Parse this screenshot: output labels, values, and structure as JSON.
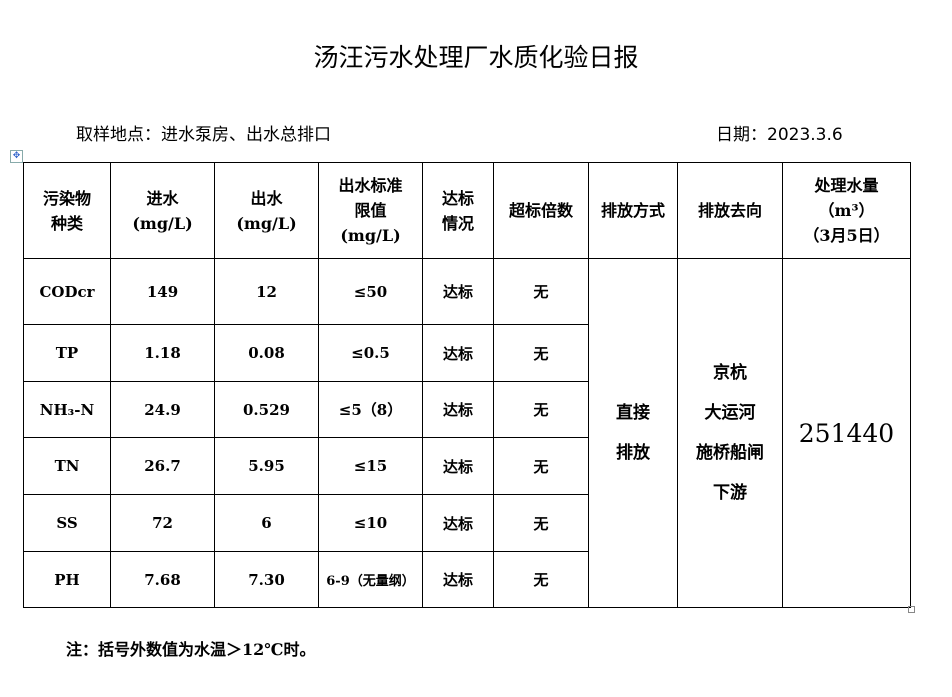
{
  "title": "汤汪污水处理厂水质化验日报",
  "location": "取样地点：进水泵房、出水总排口",
  "date": "日期：2023.3.6",
  "table": {
    "headers": [
      "污染物\n种类",
      "进水\n(mg/L)",
      "出水\n(mg/L)",
      "出水标准\n限值\n(mg/L)",
      "达标\n情况",
      "超标倍数",
      "排放方式",
      "排放去向",
      "处理水量\n（m³）\n（3月5日）"
    ],
    "rows": [
      {
        "pollutant": "CODcr",
        "in": "149",
        "out": "12",
        "limit": "≤50",
        "status": "达标",
        "exceed": "无"
      },
      {
        "pollutant": "TP",
        "in": "1.18",
        "out": "0.08",
        "limit": "≤0.5",
        "status": "达标",
        "exceed": "无"
      },
      {
        "pollutant": "NH₃-N",
        "in": "24.9",
        "out": "0.529",
        "limit": "≤5（8）",
        "status": "达标",
        "exceed": "无"
      },
      {
        "pollutant": "TN",
        "in": "26.7",
        "out": "5.95",
        "limit": "≤15",
        "status": "达标",
        "exceed": "无"
      },
      {
        "pollutant": "SS",
        "in": "72",
        "out": "6",
        "limit": "≤10",
        "status": "达标",
        "exceed": "无"
      },
      {
        "pollutant": "PH",
        "in": "7.68",
        "out": "7.30",
        "limit": "6-9（无量纲）",
        "status": "达标",
        "exceed": "无"
      }
    ],
    "discharge_method": "直接\n排放",
    "discharge_destination": "京杭\n大运河\n施桥船闸\n下游",
    "treated_volume": "251440"
  },
  "note": "注：括号外数值为水温＞12℃时。"
}
